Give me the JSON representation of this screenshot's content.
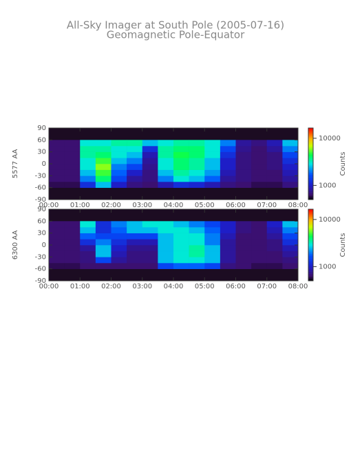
{
  "chart_data": [
    {
      "type": "heatmap",
      "title": "All-Sky Imager at South Pole (2005-07-16)",
      "subtitle": "Geomagnetic Pole-Equator",
      "ylabel": "5577 AA",
      "x_bins": [
        0,
        0.5,
        1,
        1.5,
        2,
        2.5,
        3,
        3.5,
        4,
        4.5,
        5,
        5.5,
        6,
        6.5,
        7,
        7.5,
        8
      ],
      "y_bins": [
        -90,
        -75,
        -60,
        -45,
        -30,
        -15,
        0,
        15,
        30,
        45,
        60,
        75,
        90
      ],
      "values": [
        [
          null,
          null,
          null,
          null,
          null,
          null,
          null,
          null,
          null,
          null,
          null,
          null,
          null,
          null,
          null,
          null
        ],
        [
          null,
          null,
          null,
          null,
          null,
          null,
          null,
          null,
          null,
          null,
          null,
          null,
          null,
          null,
          null,
          null
        ],
        [
          600,
          600,
          1200,
          2500,
          1000,
          700,
          650,
          900,
          1200,
          1100,
          900,
          700,
          650,
          600,
          600,
          700
        ],
        [
          650,
          650,
          2000,
          4000,
          1500,
          800,
          700,
          2000,
          3000,
          2500,
          1800,
          800,
          700,
          650,
          650,
          800
        ],
        [
          650,
          650,
          2500,
          5000,
          1800,
          1000,
          700,
          2500,
          3500,
          3000,
          2200,
          900,
          700,
          650,
          650,
          900
        ],
        [
          650,
          650,
          3000,
          6000,
          2000,
          1500,
          750,
          3000,
          4000,
          3500,
          2500,
          1000,
          700,
          650,
          700,
          1000
        ],
        [
          650,
          650,
          3000,
          5000,
          2500,
          2000,
          800,
          3000,
          4000,
          3500,
          2500,
          1000,
          700,
          650,
          700,
          1200
        ],
        [
          650,
          650,
          3500,
          4000,
          3000,
          2500,
          900,
          3500,
          4500,
          4000,
          3000,
          1200,
          700,
          650,
          700,
          1500
        ],
        [
          650,
          650,
          3500,
          3500,
          3000,
          3000,
          1200,
          3500,
          4000,
          4000,
          3000,
          1500,
          750,
          650,
          800,
          2000
        ],
        [
          650,
          650,
          3000,
          3000,
          3500,
          3500,
          2500,
          3000,
          3500,
          3500,
          3000,
          2000,
          800,
          700,
          900,
          2500
        ],
        [
          null,
          null,
          null,
          null,
          null,
          null,
          null,
          null,
          null,
          null,
          null,
          null,
          null,
          null,
          null,
          null
        ],
        [
          null,
          null,
          null,
          null,
          null,
          null,
          null,
          null,
          null,
          null,
          null,
          null,
          null,
          null,
          null,
          null
        ]
      ],
      "xlim": [
        0,
        8
      ],
      "xticks": [
        {
          "value": 0,
          "label": "00:00"
        },
        {
          "value": 1,
          "label": "01:00"
        },
        {
          "value": 2,
          "label": "02:00"
        },
        {
          "value": 3,
          "label": "03:00"
        },
        {
          "value": 4,
          "label": "04:00"
        },
        {
          "value": 5,
          "label": "05:00"
        },
        {
          "value": 6,
          "label": "06:00"
        },
        {
          "value": 7,
          "label": "07:00"
        },
        {
          "value": 8,
          "label": "08:00"
        }
      ],
      "ylim": [
        -90,
        90
      ],
      "yticks": [
        -90,
        -60,
        -30,
        0,
        30,
        60,
        90
      ],
      "colorbar": {
        "label": "Counts",
        "log": true,
        "clim": [
          500,
          16500
        ],
        "ticks": [
          1000,
          10000
        ]
      }
    },
    {
      "type": "heatmap",
      "ylabel": "6300 AA",
      "x_bins": [
        0,
        0.5,
        1,
        1.5,
        2,
        2.5,
        3,
        3.5,
        4,
        4.5,
        5,
        5.5,
        6,
        6.5,
        7,
        7.5,
        8
      ],
      "y_bins": [
        -90,
        -75,
        -60,
        -45,
        -30,
        -15,
        0,
        15,
        30,
        45,
        60,
        75,
        90
      ],
      "values": [
        [
          null,
          null,
          null,
          null,
          null,
          null,
          null,
          null,
          null,
          null,
          null,
          null,
          null,
          null,
          null,
          null
        ],
        [
          null,
          null,
          null,
          null,
          null,
          null,
          null,
          null,
          null,
          null,
          null,
          null,
          null,
          null,
          null,
          null
        ],
        [
          600,
          600,
          650,
          650,
          650,
          650,
          650,
          1500,
          1800,
          1800,
          1500,
          700,
          650,
          600,
          600,
          650
        ],
        [
          650,
          650,
          700,
          1500,
          800,
          700,
          700,
          2500,
          3000,
          3000,
          2500,
          800,
          650,
          650,
          650,
          700
        ],
        [
          650,
          650,
          700,
          2500,
          900,
          700,
          700,
          2500,
          3000,
          3500,
          2500,
          800,
          650,
          650,
          650,
          800
        ],
        [
          650,
          650,
          800,
          2500,
          1000,
          750,
          750,
          2500,
          3000,
          3500,
          2500,
          800,
          650,
          650,
          700,
          900
        ],
        [
          650,
          650,
          1200,
          2000,
          1200,
          900,
          900,
          2500,
          3000,
          3000,
          2000,
          800,
          650,
          650,
          700,
          1200
        ],
        [
          650,
          650,
          1800,
          1500,
          1500,
          1500,
          1500,
          2500,
          3000,
          3000,
          2000,
          900,
          650,
          650,
          800,
          1500
        ],
        [
          650,
          650,
          2500,
          1200,
          1800,
          2500,
          2500,
          3000,
          3000,
          2500,
          1800,
          1000,
          700,
          650,
          900,
          2000
        ],
        [
          650,
          650,
          3000,
          1200,
          2000,
          2500,
          3000,
          3000,
          2500,
          2000,
          1500,
          1000,
          700,
          650,
          1000,
          2500
        ],
        [
          null,
          null,
          null,
          null,
          null,
          null,
          null,
          null,
          null,
          null,
          null,
          null,
          null,
          null,
          null,
          null
        ],
        [
          null,
          null,
          null,
          null,
          null,
          null,
          null,
          null,
          null,
          null,
          null,
          null,
          null,
          null,
          null,
          null
        ]
      ],
      "xlim": [
        0,
        8
      ],
      "xticks": [
        {
          "value": 0,
          "label": "00:00"
        },
        {
          "value": 1,
          "label": "01:00"
        },
        {
          "value": 2,
          "label": "02:00"
        },
        {
          "value": 3,
          "label": "03:00"
        },
        {
          "value": 4,
          "label": "04:00"
        },
        {
          "value": 5,
          "label": "05:00"
        },
        {
          "value": 6,
          "label": "06:00"
        },
        {
          "value": 7,
          "label": "07:00"
        },
        {
          "value": 8,
          "label": "08:00"
        }
      ],
      "ylim": [
        -90,
        90
      ],
      "yticks": [
        -90,
        -60,
        -30,
        0,
        30,
        60,
        90
      ],
      "colorbar": {
        "label": "Counts",
        "log": true,
        "clim": [
          500,
          16500
        ],
        "ticks": [
          1000,
          10000
        ]
      }
    }
  ]
}
